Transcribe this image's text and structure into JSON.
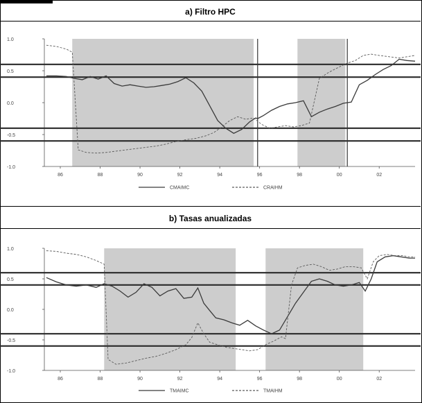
{
  "chart_data": [
    {
      "type": "line",
      "title": "a) Filtro HPC",
      "ylim": [
        -1.0,
        1.0
      ],
      "yticks": [
        "1.0",
        "0.5",
        "0.0",
        "-0.5",
        "-1.0"
      ],
      "xticks": [
        "86",
        "88",
        "90",
        "92",
        "94",
        "96",
        "98",
        "00",
        "02"
      ],
      "xlim": [
        85.2,
        103.8
      ],
      "hlines": [
        0.6,
        0.4,
        -0.4,
        -0.6
      ],
      "vlines": [
        95.9,
        100.4
      ],
      "shaded": [
        [
          86.6,
          95.7
        ],
        [
          97.9,
          100.3
        ]
      ],
      "series": [
        {
          "name": "CMAIMC",
          "style": "solid",
          "x": [
            85.3,
            85.8,
            86.3,
            86.7,
            87.1,
            87.5,
            87.9,
            88.3,
            88.7,
            89.1,
            89.5,
            89.9,
            90.3,
            90.7,
            91.1,
            91.5,
            91.9,
            92.3,
            92.7,
            93.1,
            93.5,
            93.9,
            94.3,
            94.7,
            95.1,
            95.5,
            95.8,
            95.9,
            96.2,
            96.6,
            97.0,
            97.4,
            97.8,
            98.2,
            98.6,
            99.0,
            99.4,
            99.8,
            100.2,
            100.6,
            101.0,
            101.4,
            101.8,
            102.2,
            102.6,
            103.0,
            103.4,
            103.8
          ],
          "y": [
            0.42,
            0.42,
            0.41,
            0.38,
            0.36,
            0.41,
            0.37,
            0.42,
            0.3,
            0.26,
            0.28,
            0.26,
            0.24,
            0.25,
            0.27,
            0.29,
            0.33,
            0.39,
            0.31,
            0.18,
            -0.05,
            -0.28,
            -0.4,
            -0.48,
            -0.42,
            -0.3,
            -0.24,
            -0.25,
            -0.2,
            -0.12,
            -0.06,
            -0.02,
            0.0,
            0.03,
            -0.22,
            -0.15,
            -0.1,
            -0.06,
            -0.01,
            0.01,
            0.28,
            0.35,
            0.44,
            0.52,
            0.58,
            0.68,
            0.66,
            0.65
          ]
        },
        {
          "name": "CRAIHM",
          "style": "dashed",
          "x": [
            85.3,
            85.8,
            86.3,
            86.6,
            86.9,
            87.3,
            87.8,
            88.3,
            88.8,
            89.3,
            89.8,
            90.3,
            90.8,
            91.3,
            91.8,
            92.3,
            92.8,
            93.3,
            93.7,
            94.1,
            94.5,
            94.9,
            95.3,
            95.7,
            96.1,
            96.5,
            96.9,
            97.3,
            97.7,
            98.1,
            98.5,
            99.0,
            99.5,
            100.0,
            100.4,
            100.8,
            101.2,
            101.6,
            102.0,
            102.5,
            103.0,
            103.4,
            103.8
          ],
          "y": [
            0.9,
            0.88,
            0.84,
            0.79,
            -0.74,
            -0.78,
            -0.79,
            -0.78,
            -0.76,
            -0.74,
            -0.72,
            -0.7,
            -0.68,
            -0.65,
            -0.61,
            -0.58,
            -0.56,
            -0.52,
            -0.47,
            -0.38,
            -0.28,
            -0.22,
            -0.26,
            -0.24,
            -0.34,
            -0.4,
            -0.38,
            -0.36,
            -0.38,
            -0.36,
            -0.32,
            0.38,
            0.48,
            0.56,
            0.62,
            0.66,
            0.74,
            0.76,
            0.74,
            0.72,
            0.7,
            0.72,
            0.74
          ]
        }
      ]
    },
    {
      "type": "line",
      "title": "b) Tasas anualizadas",
      "ylim": [
        -1.0,
        1.0
      ],
      "yticks": [
        "1.0",
        "0.5",
        "0.0",
        "-0.5",
        "-1.0"
      ],
      "xticks": [
        "86",
        "88",
        "90",
        "92",
        "94",
        "96",
        "98",
        "00",
        "02"
      ],
      "xlim": [
        85.2,
        103.8
      ],
      "hlines": [
        0.6,
        0.4,
        -0.4,
        -0.6
      ],
      "vlines": [],
      "shaded": [
        [
          88.2,
          94.8
        ],
        [
          96.3,
          101.2
        ]
      ],
      "series": [
        {
          "name": "TMAIMC",
          "style": "solid",
          "x": [
            85.3,
            85.8,
            86.3,
            86.8,
            87.3,
            87.8,
            88.2,
            88.6,
            89.0,
            89.4,
            89.8,
            90.2,
            90.6,
            91.0,
            91.4,
            91.8,
            92.2,
            92.6,
            92.9,
            93.2,
            93.5,
            93.8,
            94.2,
            94.6,
            95.0,
            95.4,
            95.8,
            96.2,
            96.6,
            97.0,
            97.4,
            97.8,
            98.2,
            98.6,
            99.0,
            99.4,
            99.8,
            100.2,
            100.6,
            101.0,
            101.3,
            101.6,
            101.9,
            102.3,
            102.7,
            103.1,
            103.5,
            103.8
          ],
          "y": [
            0.52,
            0.45,
            0.4,
            0.38,
            0.4,
            0.36,
            0.42,
            0.38,
            0.3,
            0.2,
            0.28,
            0.42,
            0.36,
            0.22,
            0.3,
            0.34,
            0.18,
            0.2,
            0.35,
            0.1,
            -0.02,
            -0.14,
            -0.17,
            -0.22,
            -0.26,
            -0.18,
            -0.27,
            -0.34,
            -0.4,
            -0.34,
            -0.12,
            0.1,
            0.28,
            0.46,
            0.5,
            0.46,
            0.4,
            0.38,
            0.4,
            0.44,
            0.3,
            0.5,
            0.78,
            0.86,
            0.88,
            0.86,
            0.84,
            0.84
          ]
        },
        {
          "name": "TMAIHM",
          "style": "dashed",
          "x": [
            85.3,
            85.8,
            86.3,
            86.8,
            87.3,
            87.8,
            88.2,
            88.4,
            88.8,
            89.3,
            89.8,
            90.3,
            90.8,
            91.3,
            91.8,
            92.3,
            92.6,
            92.9,
            93.2,
            93.5,
            93.9,
            94.3,
            94.7,
            95.1,
            95.5,
            95.9,
            96.3,
            96.7,
            97.1,
            97.3,
            97.6,
            97.9,
            98.3,
            98.7,
            99.1,
            99.5,
            99.9,
            100.3,
            100.7,
            101.1,
            101.4,
            101.7,
            102.0,
            102.4,
            102.8,
            103.2,
            103.5,
            103.8
          ],
          "y": [
            0.96,
            0.95,
            0.92,
            0.9,
            0.86,
            0.8,
            0.74,
            -0.82,
            -0.9,
            -0.88,
            -0.84,
            -0.8,
            -0.77,
            -0.72,
            -0.66,
            -0.58,
            -0.46,
            -0.22,
            -0.4,
            -0.54,
            -0.58,
            -0.62,
            -0.64,
            -0.66,
            -0.68,
            -0.66,
            -0.58,
            -0.52,
            -0.45,
            -0.48,
            0.4,
            0.68,
            0.72,
            0.74,
            0.7,
            0.64,
            0.66,
            0.7,
            0.7,
            0.68,
            0.5,
            0.78,
            0.88,
            0.9,
            0.88,
            0.88,
            0.86,
            0.86
          ]
        }
      ]
    }
  ]
}
